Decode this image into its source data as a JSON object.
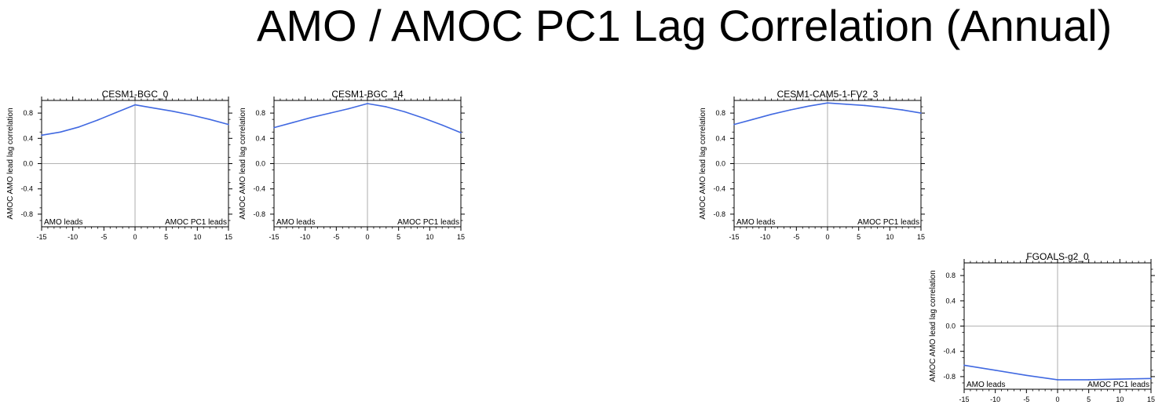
{
  "title": "AMO / AMOC PC1 Lag Correlation (Annual)",
  "colors": {
    "line": "#4169e1",
    "axis": "#000000",
    "reference": "#9a9a9a"
  },
  "chart_data": [
    {
      "type": "line",
      "title": "CESM1-BGC_0",
      "ylabel": "AMOC AMO lead lag correlation",
      "xlabel": "",
      "xlim": [
        -15,
        15
      ],
      "ylim": [
        -1.0,
        1.0
      ],
      "xticks": [
        -15,
        -10,
        -5,
        0,
        5,
        10,
        15
      ],
      "yticks": [
        0.8,
        0.4,
        0.0,
        -0.4,
        -0.8
      ],
      "ytick_labels": [
        "0.8",
        "0.4",
        "0.0",
        "-0.4",
        "-0.8"
      ],
      "left_annotation": "AMO leads",
      "right_annotation": "AMOC PC1 leads",
      "x": [
        -15,
        -12,
        -9,
        -6,
        -3,
        0,
        3,
        6,
        9,
        12,
        15
      ],
      "y": [
        0.45,
        0.5,
        0.58,
        0.69,
        0.81,
        0.93,
        0.88,
        0.83,
        0.77,
        0.7,
        0.62
      ]
    },
    {
      "type": "line",
      "title": "CESM1-BGC_14",
      "ylabel": "AMOC AMO lead lag correlation",
      "xlabel": "",
      "xlim": [
        -15,
        15
      ],
      "ylim": [
        -1.0,
        1.0
      ],
      "xticks": [
        -15,
        -10,
        -5,
        0,
        5,
        10,
        15
      ],
      "yticks": [
        0.8,
        0.4,
        0.0,
        -0.4,
        -0.8
      ],
      "ytick_labels": [
        "0.8",
        "0.4",
        "0.0",
        "-0.4",
        "-0.8"
      ],
      "left_annotation": "AMO leads",
      "right_annotation": "AMOC PC1 leads",
      "x": [
        -15,
        -12,
        -9,
        -6,
        -3,
        0,
        3,
        6,
        9,
        12,
        15
      ],
      "y": [
        0.57,
        0.65,
        0.73,
        0.8,
        0.87,
        0.95,
        0.9,
        0.82,
        0.72,
        0.61,
        0.49
      ]
    },
    {
      "type": "line",
      "title": "CESM1-CAM5-1-FV2_3",
      "ylabel": "AMOC AMO lead lag correlation",
      "xlabel": "",
      "xlim": [
        -15,
        15
      ],
      "ylim": [
        -1.0,
        1.0
      ],
      "xticks": [
        -15,
        -10,
        -5,
        0,
        5,
        10,
        15
      ],
      "yticks": [
        0.8,
        0.4,
        0.0,
        -0.4,
        -0.8
      ],
      "ytick_labels": [
        "0.8",
        "0.4",
        "0.0",
        "-0.4",
        "-0.8"
      ],
      "left_annotation": "AMO leads",
      "right_annotation": "AMOC PC1 leads",
      "x": [
        -15,
        -12,
        -9,
        -6,
        -3,
        0,
        3,
        6,
        9,
        12,
        15
      ],
      "y": [
        0.62,
        0.7,
        0.78,
        0.85,
        0.91,
        0.96,
        0.94,
        0.92,
        0.89,
        0.85,
        0.8
      ]
    },
    {
      "type": "line",
      "title": "FGOALS-g2_0",
      "ylabel": "AMOC AMO lead lag correlation",
      "xlabel": "",
      "xlim": [
        -15,
        15
      ],
      "ylim": [
        -1.0,
        1.0
      ],
      "xticks": [
        -15,
        -10,
        -5,
        0,
        5,
        10,
        15
      ],
      "yticks": [
        0.8,
        0.4,
        0.0,
        -0.4,
        -0.8
      ],
      "ytick_labels": [
        "0.8",
        "0.4",
        "0.0",
        "-0.4",
        "-0.8"
      ],
      "left_annotation": "AMO leads",
      "right_annotation": "AMOC PC1 leads",
      "x": [
        -15,
        -10,
        -5,
        0,
        5,
        10,
        15
      ],
      "y": [
        -0.62,
        -0.7,
        -0.78,
        -0.85,
        -0.85,
        -0.84,
        -0.83
      ]
    }
  ]
}
